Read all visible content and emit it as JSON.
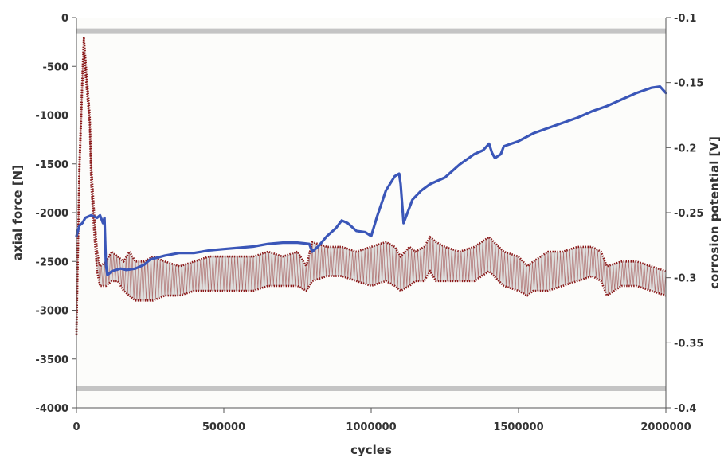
{
  "chart_data": {
    "type": "line",
    "title": "",
    "xlabel": "cycles",
    "ylabel_left": "axial force [N]",
    "ylabel_right": "corrosion potential [V]",
    "xlim": [
      0,
      2000000
    ],
    "ylim_left": [
      -4000,
      0
    ],
    "ylim_right": [
      -0.4,
      -0.1
    ],
    "x_ticks": [
      0,
      500000,
      1000000,
      1500000,
      2000000
    ],
    "x_tick_labels": [
      "0",
      "500000",
      "1000000",
      "1500000",
      "2000000"
    ],
    "y_left_ticks": [
      0,
      -500,
      -1000,
      -1500,
      -2000,
      -2500,
      -3000,
      -3500,
      -4000
    ],
    "y_left_tick_labels": [
      "0",
      "-500",
      "-1000",
      "-1500",
      "-2000",
      "-2500",
      "-3000",
      "-3500",
      "-4000"
    ],
    "y_right_ticks": [
      -0.1,
      -0.15,
      -0.2,
      -0.25,
      -0.3,
      -0.35,
      -0.4
    ],
    "y_right_tick_labels": [
      "-0.1",
      "-0.15",
      "-0.2",
      "-0.25",
      "-0.3",
      "-0.35",
      "-0.4"
    ],
    "grid": false,
    "legend": "none",
    "colors": {
      "axial_force_envelope": "#8b1a1a",
      "axial_force_fill": "#c8c8c8",
      "corrosion_potential": "#3a56b8",
      "limit_lines": "#c4c4c4",
      "plot_bg": "#fcfcfa",
      "axis": "#555555"
    },
    "series": [
      {
        "axis": "left",
        "kind": "limit",
        "style": "thick-gray",
        "x": [
          0,
          2000000
        ],
        "y": [
          -140,
          -140
        ]
      },
      {
        "axis": "left",
        "kind": "limit",
        "style": "thick-gray",
        "x": [
          0,
          2000000
        ],
        "y": [
          -3800,
          -3800
        ]
      },
      {
        "axis": "left",
        "kind": "band",
        "style": "dotted-dark-red",
        "x": [
          0,
          10000,
          20000,
          25000,
          30000,
          45000,
          50000,
          60000,
          70000,
          80000,
          100000,
          120000,
          140000,
          160000,
          180000,
          200000,
          230000,
          260000,
          300000,
          350000,
          400000,
          450000,
          500000,
          550000,
          600000,
          650000,
          700000,
          750000,
          780000,
          800000,
          850000,
          900000,
          950000,
          1000000,
          1050000,
          1080000,
          1100000,
          1130000,
          1150000,
          1180000,
          1200000,
          1220000,
          1250000,
          1300000,
          1350000,
          1400000,
          1450000,
          1500000,
          1530000,
          1550000,
          1600000,
          1650000,
          1700000,
          1750000,
          1780000,
          1800000,
          1850000,
          1900000,
          1950000,
          2000000
        ],
        "upper": [
          -3200,
          -1500,
          -600,
          -200,
          -400,
          -1000,
          -1500,
          -2000,
          -2400,
          -2550,
          -2500,
          -2400,
          -2450,
          -2500,
          -2400,
          -2500,
          -2500,
          -2450,
          -2500,
          -2550,
          -2500,
          -2450,
          -2450,
          -2450,
          -2450,
          -2400,
          -2450,
          -2400,
          -2550,
          -2300,
          -2350,
          -2350,
          -2400,
          -2350,
          -2300,
          -2350,
          -2450,
          -2350,
          -2400,
          -2350,
          -2250,
          -2300,
          -2350,
          -2400,
          -2350,
          -2250,
          -2400,
          -2450,
          -2550,
          -2500,
          -2400,
          -2400,
          -2350,
          -2350,
          -2400,
          -2550,
          -2500,
          -2500,
          -2550,
          -2600
        ],
        "lower": [
          -3250,
          -1600,
          -700,
          -350,
          -550,
          -1100,
          -1700,
          -2200,
          -2600,
          -2750,
          -2750,
          -2700,
          -2700,
          -2800,
          -2850,
          -2900,
          -2900,
          -2900,
          -2850,
          -2850,
          -2800,
          -2800,
          -2800,
          -2800,
          -2800,
          -2750,
          -2750,
          -2750,
          -2800,
          -2700,
          -2650,
          -2650,
          -2700,
          -2750,
          -2700,
          -2750,
          -2800,
          -2750,
          -2700,
          -2700,
          -2600,
          -2700,
          -2700,
          -2700,
          -2700,
          -2600,
          -2750,
          -2800,
          -2850,
          -2800,
          -2800,
          -2750,
          -2700,
          -2650,
          -2700,
          -2850,
          -2750,
          -2750,
          -2800,
          -2850
        ]
      },
      {
        "axis": "right",
        "kind": "line",
        "style": "thick-blue",
        "x": [
          0,
          10000,
          20000,
          30000,
          50000,
          70000,
          80000,
          90000,
          95000,
          100000,
          105000,
          120000,
          150000,
          170000,
          200000,
          230000,
          250000,
          300000,
          350000,
          400000,
          450000,
          500000,
          550000,
          600000,
          650000,
          700000,
          750000,
          790000,
          800000,
          820000,
          850000,
          880000,
          900000,
          920000,
          950000,
          980000,
          1000000,
          1020000,
          1050000,
          1080000,
          1095000,
          1100000,
          1110000,
          1140000,
          1170000,
          1200000,
          1250000,
          1300000,
          1350000,
          1380000,
          1400000,
          1410000,
          1420000,
          1440000,
          1450000,
          1500000,
          1550000,
          1600000,
          1650000,
          1700000,
          1750000,
          1800000,
          1850000,
          1900000,
          1950000,
          1980000,
          2000000
        ],
        "y": [
          -0.268,
          -0.26,
          -0.258,
          -0.254,
          -0.252,
          -0.254,
          -0.252,
          -0.258,
          -0.254,
          -0.29,
          -0.298,
          -0.295,
          -0.293,
          -0.294,
          -0.293,
          -0.29,
          -0.286,
          -0.283,
          -0.281,
          -0.281,
          -0.279,
          -0.278,
          -0.277,
          -0.276,
          -0.274,
          -0.273,
          -0.273,
          -0.274,
          -0.28,
          -0.276,
          -0.268,
          -0.262,
          -0.256,
          -0.258,
          -0.264,
          -0.265,
          -0.268,
          -0.253,
          -0.233,
          -0.222,
          -0.22,
          -0.228,
          -0.258,
          -0.24,
          -0.233,
          -0.228,
          -0.223,
          -0.213,
          -0.205,
          -0.202,
          -0.197,
          -0.204,
          -0.208,
          -0.205,
          -0.199,
          -0.195,
          -0.189,
          -0.185,
          -0.181,
          -0.177,
          -0.172,
          -0.168,
          -0.163,
          -0.158,
          -0.154,
          -0.153,
          -0.158
        ]
      }
    ]
  }
}
